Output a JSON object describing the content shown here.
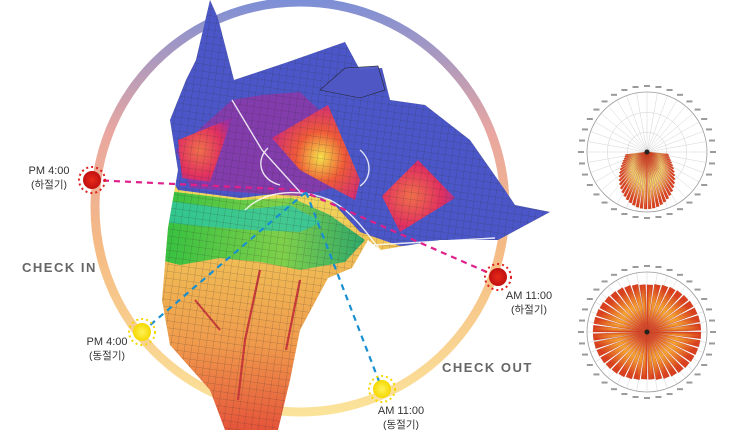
{
  "labels": {
    "check_in": "CHECK IN",
    "check_out": "CHECK OUT"
  },
  "markers": [
    {
      "time": "PM 4:00",
      "season": "(하절기)",
      "color": "#d42020"
    },
    {
      "time": "AM 11:00",
      "season": "(하절기)",
      "color": "#d42020"
    },
    {
      "time": "PM 4:00",
      "season": "(동절기)",
      "color": "#ffe800"
    },
    {
      "time": "AM 11:00",
      "season": "(동절기)",
      "color": "#ffe800"
    }
  ],
  "connector_colors": {
    "summer": "#e0208a",
    "winter": "#1a8fd0"
  },
  "ring_gradient": [
    "#7d8fd6",
    "#e9a7a0",
    "#f5bb84",
    "#fbe39a"
  ],
  "polar_charts": [
    {
      "name": "summer-sun-chart",
      "fill": "lower-half",
      "colors": [
        "#f3ea6a",
        "#d8401f"
      ]
    },
    {
      "name": "winter-sun-chart",
      "fill": "full",
      "colors": [
        "#f3a030",
        "#d8401f"
      ]
    }
  ]
}
